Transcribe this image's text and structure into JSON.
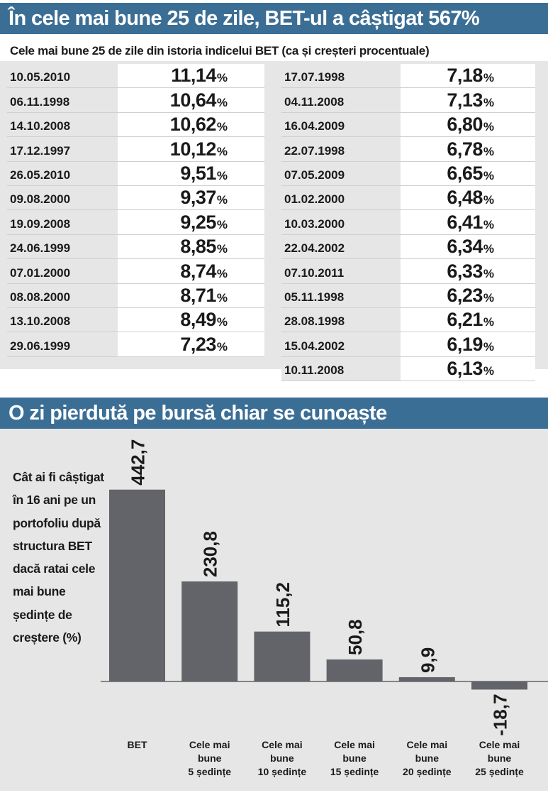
{
  "header1": {
    "title": "În cele mai bune 25 de zile, BET-ul a câștigat 567%"
  },
  "table": {
    "subtitle": "Cele mai bune 25 de zile din istoria indicelui BET (ca și creșteri procentuale)",
    "percent_symbol": "%",
    "left": [
      {
        "date": "10.05.2010",
        "value": "11,14"
      },
      {
        "date": "06.11.1998",
        "value": "10,64"
      },
      {
        "date": "14.10.2008",
        "value": "10,62"
      },
      {
        "date": "17.12.1997",
        "value": "10,12"
      },
      {
        "date": "26.05.2010",
        "value": "9,51"
      },
      {
        "date": "09.08.2000",
        "value": "9,37"
      },
      {
        "date": "19.09.2008",
        "value": "9,25"
      },
      {
        "date": "24.06.1999",
        "value": "8,85"
      },
      {
        "date": "07.01.2000",
        "value": "8,74"
      },
      {
        "date": "08.08.2000",
        "value": "8,71"
      },
      {
        "date": "13.10.2008",
        "value": "8,49"
      },
      {
        "date": "29.06.1999",
        "value": "7,23"
      }
    ],
    "right": [
      {
        "date": "17.07.1998",
        "value": "7,18"
      },
      {
        "date": "04.11.2008",
        "value": "7,13"
      },
      {
        "date": "16.04.2009",
        "value": "6,80"
      },
      {
        "date": "22.07.1998",
        "value": "6,78"
      },
      {
        "date": "07.05.2009",
        "value": "6,65"
      },
      {
        "date": "01.02.2000",
        "value": "6,48"
      },
      {
        "date": "10.03.2000",
        "value": "6,41"
      },
      {
        "date": "22.04.2002",
        "value": "6,34"
      },
      {
        "date": "07.10.2011",
        "value": "6,33"
      },
      {
        "date": "05.11.1998",
        "value": "6,23"
      },
      {
        "date": "28.08.1998",
        "value": "6,21"
      },
      {
        "date": "15.04.2002",
        "value": "6,19"
      },
      {
        "date": "10.11.2008",
        "value": "6,13"
      }
    ]
  },
  "header2": {
    "title": "O zi pierdută pe bursă chiar se cunoaște"
  },
  "chart_note": "Cât ai fi câștigat în 16 ani pe un portofoliu după structura BET dacă ratai cele mai bune ședințe de creștere (%)",
  "colors": {
    "banner": "#3b6e95",
    "bar": "#626469",
    "panel": "#e6e6e6"
  },
  "chart_data": {
    "type": "bar",
    "categories": [
      [
        "BET"
      ],
      [
        "Cele mai",
        "bune",
        "5 ședințe"
      ],
      [
        "Cele mai",
        "bune",
        "10 ședințe"
      ],
      [
        "Cele mai",
        "bune",
        "15 ședințe"
      ],
      [
        "Cele mai",
        "bune",
        "20 ședințe"
      ],
      [
        "Cele mai",
        "bune",
        "25 ședințe"
      ]
    ],
    "values": [
      442.7,
      230.8,
      115.2,
      50.8,
      9.9,
      -18.7
    ],
    "labels": [
      "442,7",
      "230,8",
      "115,2",
      "50,8",
      "9,9",
      "-18,7"
    ],
    "title": "",
    "xlabel": "",
    "ylabel": "",
    "grid": false
  }
}
